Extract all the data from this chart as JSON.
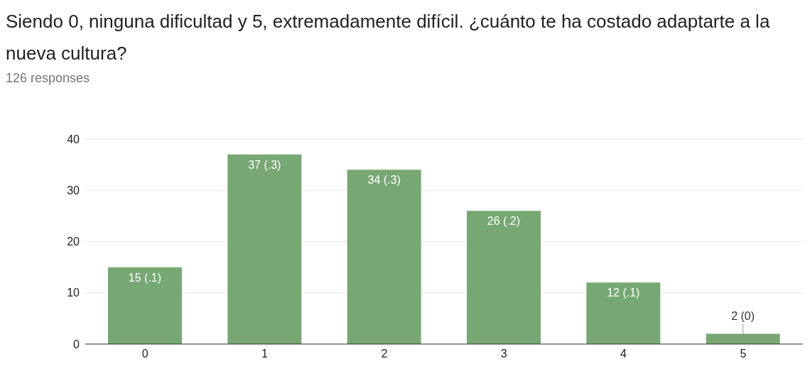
{
  "chart_data": {
    "type": "bar",
    "title": "Siendo 0, ninguna dificultad y 5, extremadamente difícil. ¿cuánto te ha costado adaptarte a la nueva cultura?",
    "subtitle": "126 responses",
    "categories": [
      "0",
      "1",
      "2",
      "3",
      "4",
      "5"
    ],
    "values": [
      15,
      37,
      34,
      26,
      12,
      2
    ],
    "value_labels": [
      "15 (.1)",
      "37 (.3)",
      "34 (.3)",
      "26 (.2)",
      "12 (.1)",
      "2 (0)"
    ],
    "color": "#77a874",
    "ylim": [
      0,
      40
    ],
    "yticks": [
      0,
      10,
      20,
      30,
      40
    ],
    "grid": "y"
  }
}
